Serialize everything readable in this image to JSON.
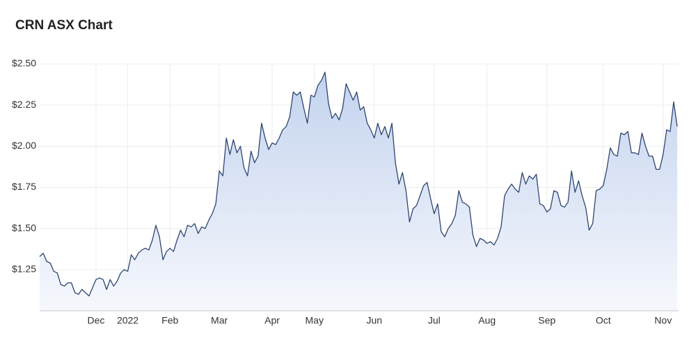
{
  "chart_data": {
    "type": "line",
    "title": "CRN ASX Chart",
    "color": "#2d4471",
    "grid": true,
    "ylim": [
      1.0,
      2.5
    ],
    "yticks": [
      {
        "value": 1.25,
        "label": "$1.25"
      },
      {
        "value": 1.5,
        "label": "$1.50"
      },
      {
        "value": 1.75,
        "label": "$1.75"
      },
      {
        "value": 2.0,
        "label": "$2.00"
      },
      {
        "value": 2.25,
        "label": "$2.25"
      },
      {
        "value": 2.5,
        "label": "$2.50"
      }
    ],
    "x": [
      null,
      null,
      null,
      null,
      null,
      null,
      null,
      null,
      null,
      null,
      null,
      null,
      null,
      null,
      null,
      null,
      "Dec",
      null,
      null,
      null,
      null,
      null,
      null,
      null,
      null,
      "2022",
      null,
      null,
      null,
      null,
      null,
      null,
      null,
      null,
      null,
      null,
      null,
      "Feb",
      null,
      null,
      null,
      null,
      null,
      null,
      null,
      null,
      null,
      null,
      null,
      null,
      null,
      "Mar",
      null,
      null,
      null,
      null,
      null,
      null,
      null,
      null,
      null,
      null,
      null,
      null,
      null,
      null,
      "Apr",
      null,
      null,
      null,
      null,
      null,
      null,
      null,
      null,
      null,
      null,
      null,
      "May",
      null,
      null,
      null,
      null,
      null,
      null,
      null,
      null,
      null,
      null,
      null,
      null,
      null,
      null,
      null,
      null,
      "Jun",
      null,
      null,
      null,
      null,
      null,
      null,
      null,
      null,
      null,
      null,
      null,
      null,
      null,
      null,
      null,
      null,
      "Jul",
      null,
      null,
      null,
      null,
      null,
      null,
      null,
      null,
      null,
      null,
      null,
      null,
      null,
      null,
      "Aug",
      null,
      null,
      null,
      null,
      null,
      null,
      null,
      null,
      null,
      null,
      null,
      null,
      null,
      null,
      null,
      null,
      "Sep",
      null,
      null,
      null,
      null,
      null,
      null,
      null,
      null,
      null,
      null,
      null,
      null,
      null,
      null,
      null,
      "Oct",
      null,
      null,
      null,
      null,
      null,
      null,
      null,
      null,
      null,
      null,
      null,
      null,
      null,
      null,
      null,
      null,
      "Nov",
      null,
      null,
      null,
      null
    ],
    "values": [
      1.33,
      1.35,
      1.3,
      1.29,
      1.24,
      1.23,
      1.16,
      1.15,
      1.17,
      1.17,
      1.11,
      1.1,
      1.13,
      1.11,
      1.09,
      1.14,
      1.19,
      1.2,
      1.19,
      1.13,
      1.19,
      1.15,
      1.18,
      1.23,
      1.25,
      1.24,
      1.34,
      1.31,
      1.35,
      1.37,
      1.38,
      1.37,
      1.43,
      1.52,
      1.45,
      1.31,
      1.36,
      1.38,
      1.36,
      1.43,
      1.49,
      1.45,
      1.52,
      1.51,
      1.53,
      1.47,
      1.51,
      1.5,
      1.55,
      1.59,
      1.65,
      1.85,
      1.82,
      2.05,
      1.95,
      2.04,
      1.96,
      2.0,
      1.87,
      1.82,
      1.97,
      1.9,
      1.94,
      2.14,
      2.05,
      1.98,
      2.02,
      2.01,
      2.05,
      2.1,
      2.12,
      2.18,
      2.33,
      2.31,
      2.33,
      2.23,
      2.14,
      2.31,
      2.3,
      2.37,
      2.4,
      2.45,
      2.26,
      2.17,
      2.2,
      2.16,
      2.23,
      2.38,
      2.33,
      2.28,
      2.33,
      2.22,
      2.24,
      2.14,
      2.1,
      2.05,
      2.14,
      2.07,
      2.12,
      2.05,
      2.14,
      1.9,
      1.77,
      1.84,
      1.73,
      1.54,
      1.62,
      1.64,
      1.7,
      1.76,
      1.78,
      1.68,
      1.59,
      1.65,
      1.48,
      1.45,
      1.5,
      1.53,
      1.58,
      1.73,
      1.66,
      1.65,
      1.63,
      1.46,
      1.39,
      1.44,
      1.43,
      1.41,
      1.42,
      1.4,
      1.44,
      1.51,
      1.7,
      1.74,
      1.77,
      1.74,
      1.72,
      1.84,
      1.77,
      1.82,
      1.8,
      1.83,
      1.65,
      1.64,
      1.6,
      1.62,
      1.73,
      1.72,
      1.64,
      1.63,
      1.66,
      1.85,
      1.72,
      1.79,
      1.7,
      1.63,
      1.49,
      1.53,
      1.73,
      1.74,
      1.76,
      1.86,
      1.99,
      1.95,
      1.94,
      2.08,
      2.07,
      2.09,
      1.96,
      1.96,
      1.95,
      2.08,
      2.0,
      1.94,
      1.94,
      1.86,
      1.86,
      1.95,
      2.1,
      2.09,
      2.27,
      2.12
    ]
  }
}
